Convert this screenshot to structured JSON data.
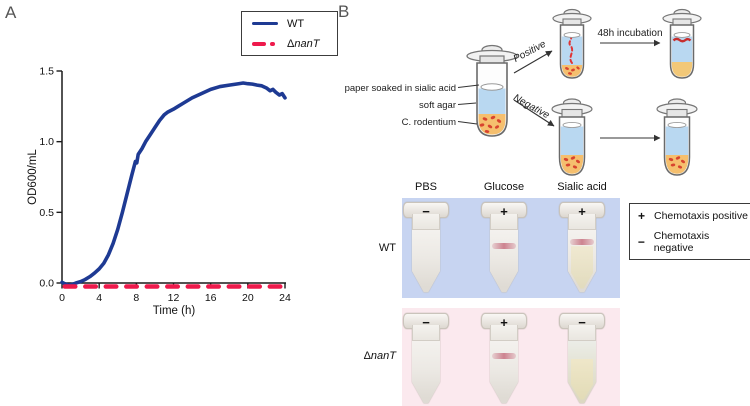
{
  "figure": {
    "panelA_label": "A",
    "panelB_label": "B"
  },
  "chart_data": {
    "type": "line",
    "title": "",
    "xlabel": "Time (h)",
    "ylabel": "OD600/mL",
    "xlim": [
      0,
      24
    ],
    "ylim": [
      0,
      1.5
    ],
    "xticks": [
      0,
      4,
      8,
      12,
      16,
      20,
      24
    ],
    "yticks": [
      0.0,
      0.5,
      1.0,
      1.5
    ],
    "grid": false,
    "legend_position": "top-right",
    "series": [
      {
        "name": "WT",
        "color": "#1e3a93",
        "style": "solid",
        "x": [
          0,
          0.3,
          0.7,
          1.1,
          1.5,
          2,
          2.5,
          3,
          3.5,
          4,
          4.5,
          5,
          5.5,
          6,
          6.5,
          7,
          7.5,
          7.9,
          8.05,
          8.2,
          8.6,
          9,
          9.5,
          10,
          10.5,
          11,
          11.4,
          12,
          12.5,
          13,
          14,
          15,
          16,
          17,
          18,
          19,
          19.5,
          20,
          20.5,
          21,
          21.5,
          22,
          22.4,
          22.7,
          23,
          23.4,
          23.7,
          24
        ],
        "y": [
          0.005,
          -0.005,
          -0.015,
          -0.01,
          0,
          0.01,
          0.025,
          0.045,
          0.07,
          0.1,
          0.14,
          0.2,
          0.28,
          0.38,
          0.5,
          0.63,
          0.76,
          0.86,
          0.85,
          0.91,
          0.95,
          1.0,
          1.05,
          1.1,
          1.15,
          1.19,
          1.21,
          1.23,
          1.25,
          1.27,
          1.31,
          1.34,
          1.37,
          1.39,
          1.4,
          1.41,
          1.415,
          1.41,
          1.407,
          1.4,
          1.395,
          1.38,
          1.36,
          1.37,
          1.35,
          1.33,
          1.34,
          1.31
        ]
      },
      {
        "name": "ΔnanT",
        "color": "#ee1a4c",
        "style": "dashed",
        "x": [
          0.3,
          24
        ],
        "y": [
          -0.025,
          -0.025
        ]
      }
    ]
  },
  "legendA": {
    "wt": "WT",
    "delta": "Δ",
    "gene": "nanT"
  },
  "schematic": {
    "labels": {
      "paper": "paper soaked in sialic acid",
      "agar": "soft agar",
      "bacteria": "C. rodentium",
      "positive": "Positive",
      "negative": "Negative",
      "incubation": "48h incubation"
    }
  },
  "photos": {
    "columns": [
      "PBS",
      "Glucose",
      "Sialic acid"
    ],
    "rows": [
      {
        "label": "WT",
        "signs": [
          "−",
          "+",
          "+"
        ]
      },
      {
        "label_delta": "Δ",
        "label_gene": "nanT",
        "signs": [
          "−",
          "+",
          "−"
        ]
      }
    ],
    "legend": [
      {
        "symbol": "+",
        "label": "Chemotaxis positive"
      },
      {
        "symbol": "−",
        "label": "Chemotaxis negative"
      }
    ],
    "colors": {
      "wt_bg": "#c7d4f1",
      "mutant_bg": "#fbe9ee",
      "curve_blue": "#1e3a93",
      "curve_red": "#ee1a4c",
      "agar_blue": "#b9d8f1",
      "pellet_orange": "#f5bf6e",
      "bacteria_red": "#d8442f"
    }
  }
}
